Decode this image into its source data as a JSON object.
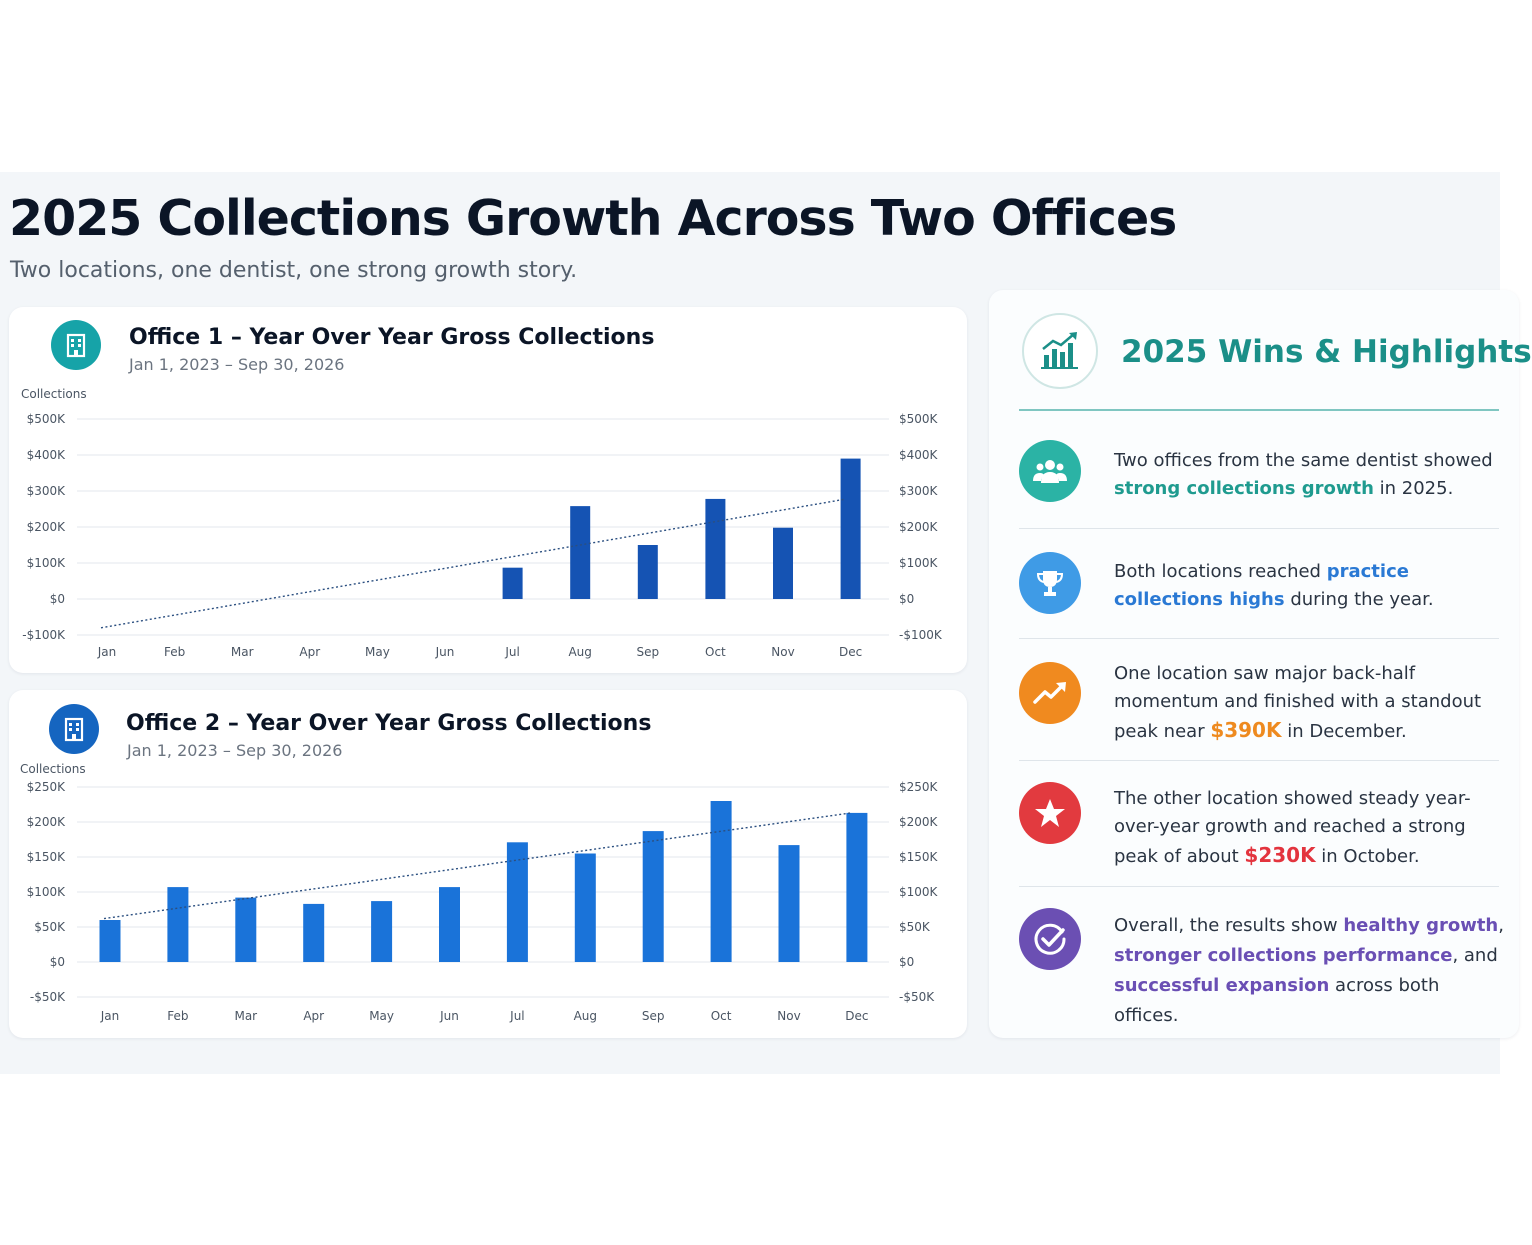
{
  "page": {
    "title": "2025 Collections Growth Across Two Offices",
    "subtitle": "Two locations, one dentist, one strong growth story."
  },
  "chart_data": [
    {
      "type": "bar",
      "title": "Office 1 – Year Over Year Gross Collections",
      "subtitle": "Jan 1, 2023 – Sep 30, 2026",
      "ylabel": "Collections",
      "categories": [
        "Jan",
        "Feb",
        "Mar",
        "Apr",
        "May",
        "Jun",
        "Jul",
        "Aug",
        "Sep",
        "Oct",
        "Nov",
        "Dec"
      ],
      "values": [
        null,
        null,
        null,
        null,
        null,
        null,
        87,
        258,
        150,
        278,
        198,
        390
      ],
      "trend": {
        "start": -80,
        "end": 277
      },
      "ylim": [
        -100,
        500
      ],
      "yticks": [
        -100,
        0,
        100,
        200,
        300,
        400,
        500
      ],
      "ytick_labels": [
        "-$100K",
        "$0",
        "$100K",
        "$200K",
        "$300K",
        "$400K",
        "$500K"
      ],
      "grid": true,
      "bar_color": "#1553b3",
      "icon_color": "#16a3a8"
    },
    {
      "type": "bar",
      "title": "Office 2 – Year Over Year Gross Collections",
      "subtitle": "Jan 1, 2023 – Sep 30, 2026",
      "ylabel": "Collections",
      "categories": [
        "Jan",
        "Feb",
        "Mar",
        "Apr",
        "May",
        "Jun",
        "Jul",
        "Aug",
        "Sep",
        "Oct",
        "Nov",
        "Dec"
      ],
      "values": [
        60,
        107,
        92,
        83,
        87,
        107,
        171,
        155,
        187,
        230,
        167,
        213
      ],
      "trend": {
        "start": 62,
        "end": 213
      },
      "ylim": [
        -50,
        250
      ],
      "yticks": [
        -50,
        0,
        50,
        100,
        150,
        200,
        250
      ],
      "ytick_labels": [
        "-$50K",
        "$0",
        "$50K",
        "$100K",
        "$150K",
        "$200K",
        "$250K"
      ],
      "grid": true,
      "bar_color": "#1a73d9",
      "icon_color": "#1565c0"
    }
  ],
  "wins": {
    "title": "2025 Wins & Highlights",
    "icon": "growth-chart-icon",
    "items": [
      {
        "icon": "people-icon",
        "color": "#2bb3a5",
        "text_before": "Two offices from the same dentist showed ",
        "highlight": "strong collections growth",
        "text_after": " in 2025."
      },
      {
        "icon": "trophy-icon",
        "color": "#3f9be6",
        "text_before": "Both locations reached ",
        "highlight": "practice collections highs",
        "text_after": " during the year."
      },
      {
        "icon": "trend-up-icon",
        "color": "#f08a1f",
        "text_before": "One location saw major back-half momentum and finished with a standout peak near ",
        "highlight": "$390K",
        "text_after": " in December."
      },
      {
        "icon": "star-icon",
        "color": "#e23a3f",
        "text_before": "The other location showed steady year-over-year growth and reached a strong peak of about ",
        "highlight": "$230K",
        "text_after": " in October."
      },
      {
        "icon": "check-circle-icon",
        "color": "#6b4fb3",
        "text_1": "Overall, the results show ",
        "highlight_1": "healthy growth",
        "text_2": ", ",
        "highlight_2": "stronger collections performance",
        "text_3": ", and ",
        "highlight_3": "successful expansion",
        "text_4": " across both offices."
      }
    ]
  }
}
